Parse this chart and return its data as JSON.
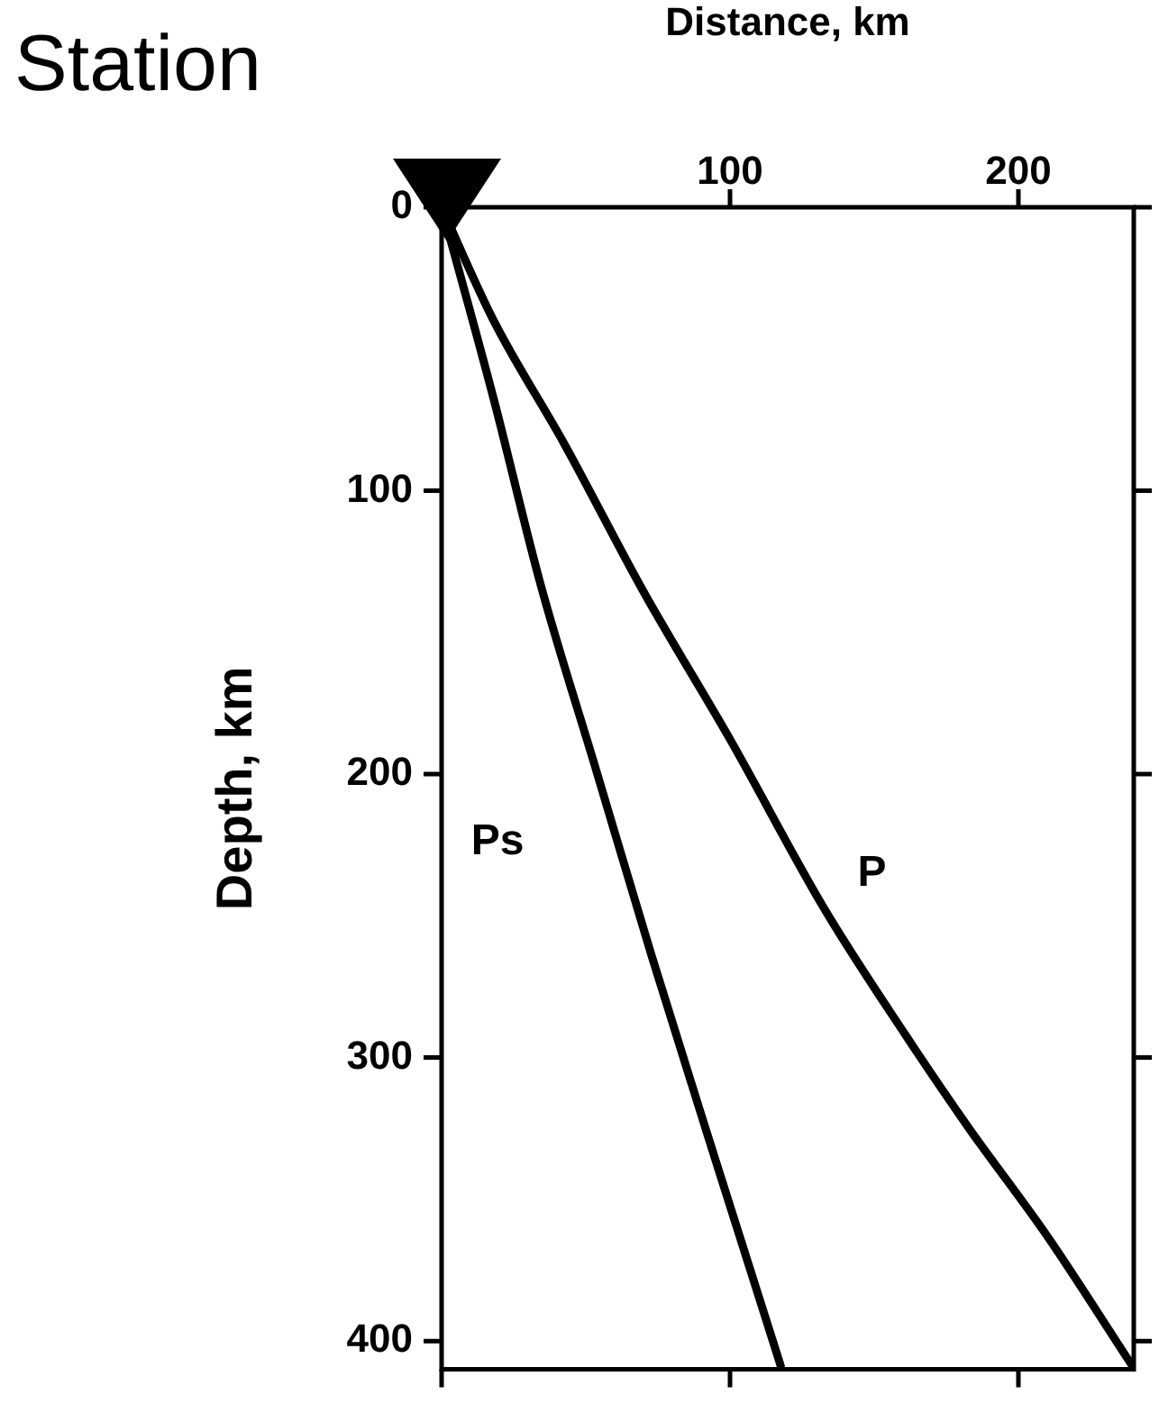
{
  "chart_data": {
    "type": "line",
    "xlabel": "Distance, km",
    "ylabel": "Depth, km",
    "annotations": [
      "Station"
    ],
    "xlim": [
      0,
      240
    ],
    "xticks": [
      {
        "value": 0,
        "label": null
      },
      100,
      200
    ],
    "ylim": [
      410,
      0
    ],
    "yticks": [
      0,
      100,
      200,
      300,
      400
    ],
    "grid": false,
    "legend": false,
    "marker": "none",
    "line_style": "solid",
    "series": [
      {
        "name": "P",
        "color": "#000000",
        "x": [
          0,
          17.9,
          42.6,
          70,
          100,
          133,
          160.7,
          182.7,
          210,
          239
        ],
        "values": [
          0,
          39.7,
          83.6,
          135.6,
          187.7,
          248,
          291.8,
          324.7,
          363,
          408
        ]
      },
      {
        "name": "Ps",
        "color": "#000000",
        "x": [
          0,
          17.9,
          34.3,
          53.6,
          72.8,
          94.8,
          117.6
        ],
        "values": [
          0,
          67,
          133,
          198.6,
          264,
          335.6,
          408.8
        ]
      }
    ]
  }
}
